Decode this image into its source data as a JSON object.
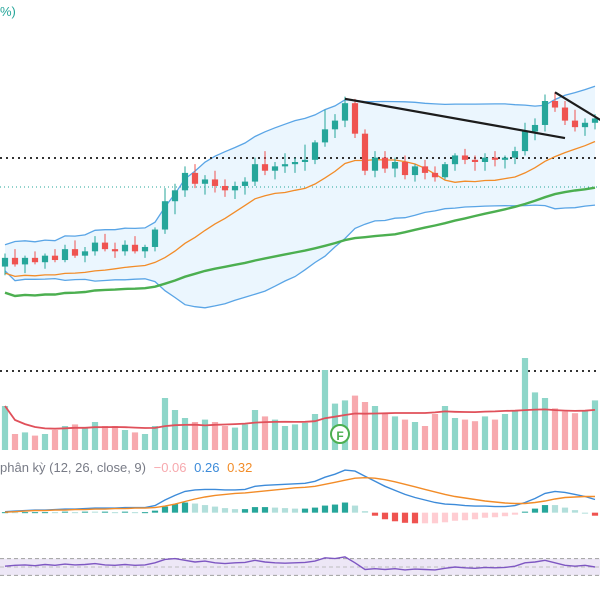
{
  "header": {
    "top_label": "%)"
  },
  "macd_legend": {
    "name": "phân kỳ (12, 26, close, 9)",
    "histogram": "−0.06",
    "macd": "0.26",
    "signal": "0.32"
  },
  "colors": {
    "up": "#26a69a",
    "down": "#ef5350",
    "up_volume": "#8ed6c9",
    "down_volume": "#f7a9ae",
    "ma_short": "#f28c28",
    "ma_long": "#4caf50",
    "bollinger": "#5aa5e6",
    "band_fill": "#e3f2fd",
    "trendline": "#1c1c1c",
    "volume_ma": "#e0505a",
    "macd_line": "#3d8bd9",
    "signal_line": "#f28c28",
    "rsi_line": "#7e57c2",
    "rsi_band": "#ede7f6"
  },
  "badge": {
    "label": "F"
  },
  "chart_data": {
    "type": "candlestick",
    "candles": [
      [
        33.6,
        34.2,
        33.2,
        34.0
      ],
      [
        34.0,
        34.4,
        33.6,
        33.7
      ],
      [
        33.7,
        34.1,
        33.3,
        34.0
      ],
      [
        34.0,
        34.3,
        33.7,
        33.8
      ],
      [
        33.8,
        34.2,
        33.5,
        34.1
      ],
      [
        34.1,
        34.4,
        33.8,
        33.9
      ],
      [
        33.9,
        34.6,
        33.8,
        34.4
      ],
      [
        34.4,
        34.8,
        34.0,
        34.1
      ],
      [
        34.1,
        34.5,
        33.8,
        34.3
      ],
      [
        34.3,
        35.0,
        34.1,
        34.7
      ],
      [
        34.7,
        35.1,
        34.3,
        34.4
      ],
      [
        34.4,
        34.7,
        34.0,
        34.3
      ],
      [
        34.3,
        34.8,
        34.1,
        34.6
      ],
      [
        34.6,
        35.0,
        34.2,
        34.3
      ],
      [
        34.3,
        34.6,
        34.0,
        34.5
      ],
      [
        34.5,
        35.4,
        34.3,
        35.3
      ],
      [
        35.3,
        37.2,
        35.1,
        36.6
      ],
      [
        36.6,
        37.4,
        36.0,
        37.1
      ],
      [
        37.1,
        38.2,
        36.8,
        37.9
      ],
      [
        37.9,
        38.3,
        37.2,
        37.4
      ],
      [
        37.4,
        37.8,
        36.9,
        37.6
      ],
      [
        37.6,
        38.0,
        37.0,
        37.3
      ],
      [
        37.3,
        37.6,
        36.8,
        37.1
      ],
      [
        37.1,
        37.5,
        36.7,
        37.3
      ],
      [
        37.3,
        37.7,
        36.9,
        37.5
      ],
      [
        37.5,
        38.6,
        37.3,
        38.3
      ],
      [
        38.3,
        38.9,
        37.8,
        38.0
      ],
      [
        38.0,
        38.4,
        37.6,
        38.2
      ],
      [
        38.2,
        38.8,
        37.9,
        38.3
      ],
      [
        38.3,
        38.6,
        37.9,
        38.4
      ],
      [
        38.4,
        39.2,
        38.0,
        38.5
      ],
      [
        38.5,
        39.4,
        38.3,
        39.3
      ],
      [
        39.3,
        40.8,
        39.1,
        39.9
      ],
      [
        39.9,
        40.6,
        39.5,
        40.3
      ],
      [
        40.3,
        41.4,
        40.0,
        41.1
      ],
      [
        41.1,
        41.3,
        39.5,
        39.7
      ],
      [
        39.7,
        39.9,
        37.8,
        38.0
      ],
      [
        38.0,
        38.9,
        37.7,
        38.6
      ],
      [
        38.6,
        38.9,
        37.9,
        38.1
      ],
      [
        38.1,
        38.6,
        37.7,
        38.4
      ],
      [
        38.4,
        38.7,
        37.6,
        37.8
      ],
      [
        37.8,
        38.3,
        37.5,
        38.2
      ],
      [
        38.2,
        38.5,
        37.6,
        37.9
      ],
      [
        37.9,
        38.2,
        37.5,
        37.7
      ],
      [
        37.7,
        38.4,
        37.6,
        38.3
      ],
      [
        38.3,
        38.8,
        38.0,
        38.7
      ],
      [
        38.7,
        39.0,
        38.3,
        38.5
      ],
      [
        38.5,
        38.7,
        38.0,
        38.4
      ],
      [
        38.4,
        38.8,
        38.0,
        38.6
      ],
      [
        38.6,
        38.9,
        38.2,
        38.5
      ],
      [
        38.5,
        38.7,
        38.1,
        38.6
      ],
      [
        38.6,
        39.1,
        38.3,
        38.9
      ],
      [
        38.9,
        40.2,
        38.7,
        39.8
      ],
      [
        39.8,
        40.4,
        39.4,
        40.1
      ],
      [
        40.1,
        41.5,
        39.8,
        41.2
      ],
      [
        41.2,
        41.6,
        40.7,
        40.9
      ],
      [
        40.9,
        41.2,
        40.1,
        40.3
      ],
      [
        40.3,
        40.8,
        39.8,
        40.0
      ],
      [
        40.0,
        40.4,
        39.6,
        40.2
      ],
      [
        40.2,
        40.6,
        39.9,
        40.4
      ]
    ],
    "volume": [
      0.55,
      0.2,
      0.22,
      0.18,
      0.2,
      0.25,
      0.3,
      0.32,
      0.28,
      0.35,
      0.3,
      0.3,
      0.25,
      0.22,
      0.2,
      0.3,
      0.65,
      0.5,
      0.4,
      0.35,
      0.38,
      0.35,
      0.3,
      0.28,
      0.32,
      0.5,
      0.42,
      0.38,
      0.3,
      0.32,
      0.34,
      0.45,
      1.0,
      0.58,
      0.62,
      0.68,
      0.6,
      0.55,
      0.45,
      0.42,
      0.38,
      0.35,
      0.3,
      0.45,
      0.55,
      0.4,
      0.38,
      0.36,
      0.42,
      0.38,
      0.45,
      0.5,
      1.15,
      0.72,
      0.65,
      0.52,
      0.48,
      0.46,
      0.5,
      0.62
    ],
    "macd": [
      0.02,
      0.03,
      0.04,
      0.05,
      0.05,
      0.06,
      0.07,
      0.07,
      0.08,
      0.09,
      0.09,
      0.09,
      0.1,
      0.1,
      0.1,
      0.14,
      0.25,
      0.34,
      0.42,
      0.45,
      0.46,
      0.46,
      0.45,
      0.45,
      0.46,
      0.52,
      0.54,
      0.55,
      0.56,
      0.57,
      0.58,
      0.62,
      0.7,
      0.76,
      0.84,
      0.82,
      0.72,
      0.62,
      0.52,
      0.44,
      0.36,
      0.3,
      0.25,
      0.2,
      0.17,
      0.16,
      0.14,
      0.13,
      0.13,
      0.12,
      0.12,
      0.14,
      0.2,
      0.28,
      0.38,
      0.42,
      0.4,
      0.36,
      0.32,
      0.26
    ],
    "signal": [
      0.01,
      0.02,
      0.03,
      0.04,
      0.04,
      0.05,
      0.05,
      0.06,
      0.06,
      0.07,
      0.07,
      0.08,
      0.08,
      0.09,
      0.09,
      0.1,
      0.13,
      0.17,
      0.22,
      0.27,
      0.31,
      0.34,
      0.36,
      0.38,
      0.39,
      0.41,
      0.43,
      0.45,
      0.47,
      0.49,
      0.5,
      0.52,
      0.56,
      0.6,
      0.64,
      0.68,
      0.69,
      0.68,
      0.65,
      0.61,
      0.56,
      0.51,
      0.46,
      0.41,
      0.36,
      0.32,
      0.29,
      0.26,
      0.23,
      0.21,
      0.19,
      0.18,
      0.18,
      0.2,
      0.23,
      0.27,
      0.3,
      0.31,
      0.32,
      0.32
    ],
    "rsi": [
      52,
      54,
      55,
      53,
      56,
      54,
      57,
      55,
      56,
      58,
      55,
      54,
      56,
      54,
      55,
      60,
      68,
      70,
      66,
      62,
      64,
      60,
      58,
      60,
      61,
      66,
      62,
      60,
      59,
      60,
      61,
      64,
      72,
      70,
      74,
      60,
      44,
      46,
      44,
      46,
      43,
      45,
      44,
      43,
      47,
      50,
      48,
      47,
      49,
      48,
      49,
      52,
      60,
      62,
      66,
      60,
      54,
      52,
      54,
      50
    ],
    "ylim": [
      30,
      44
    ],
    "macd_ylim": [
      -0.5,
      1.0
    ],
    "rsi_ylim": [
      0,
      100
    ],
    "grid": false,
    "legend": "none",
    "annotation": "F"
  }
}
